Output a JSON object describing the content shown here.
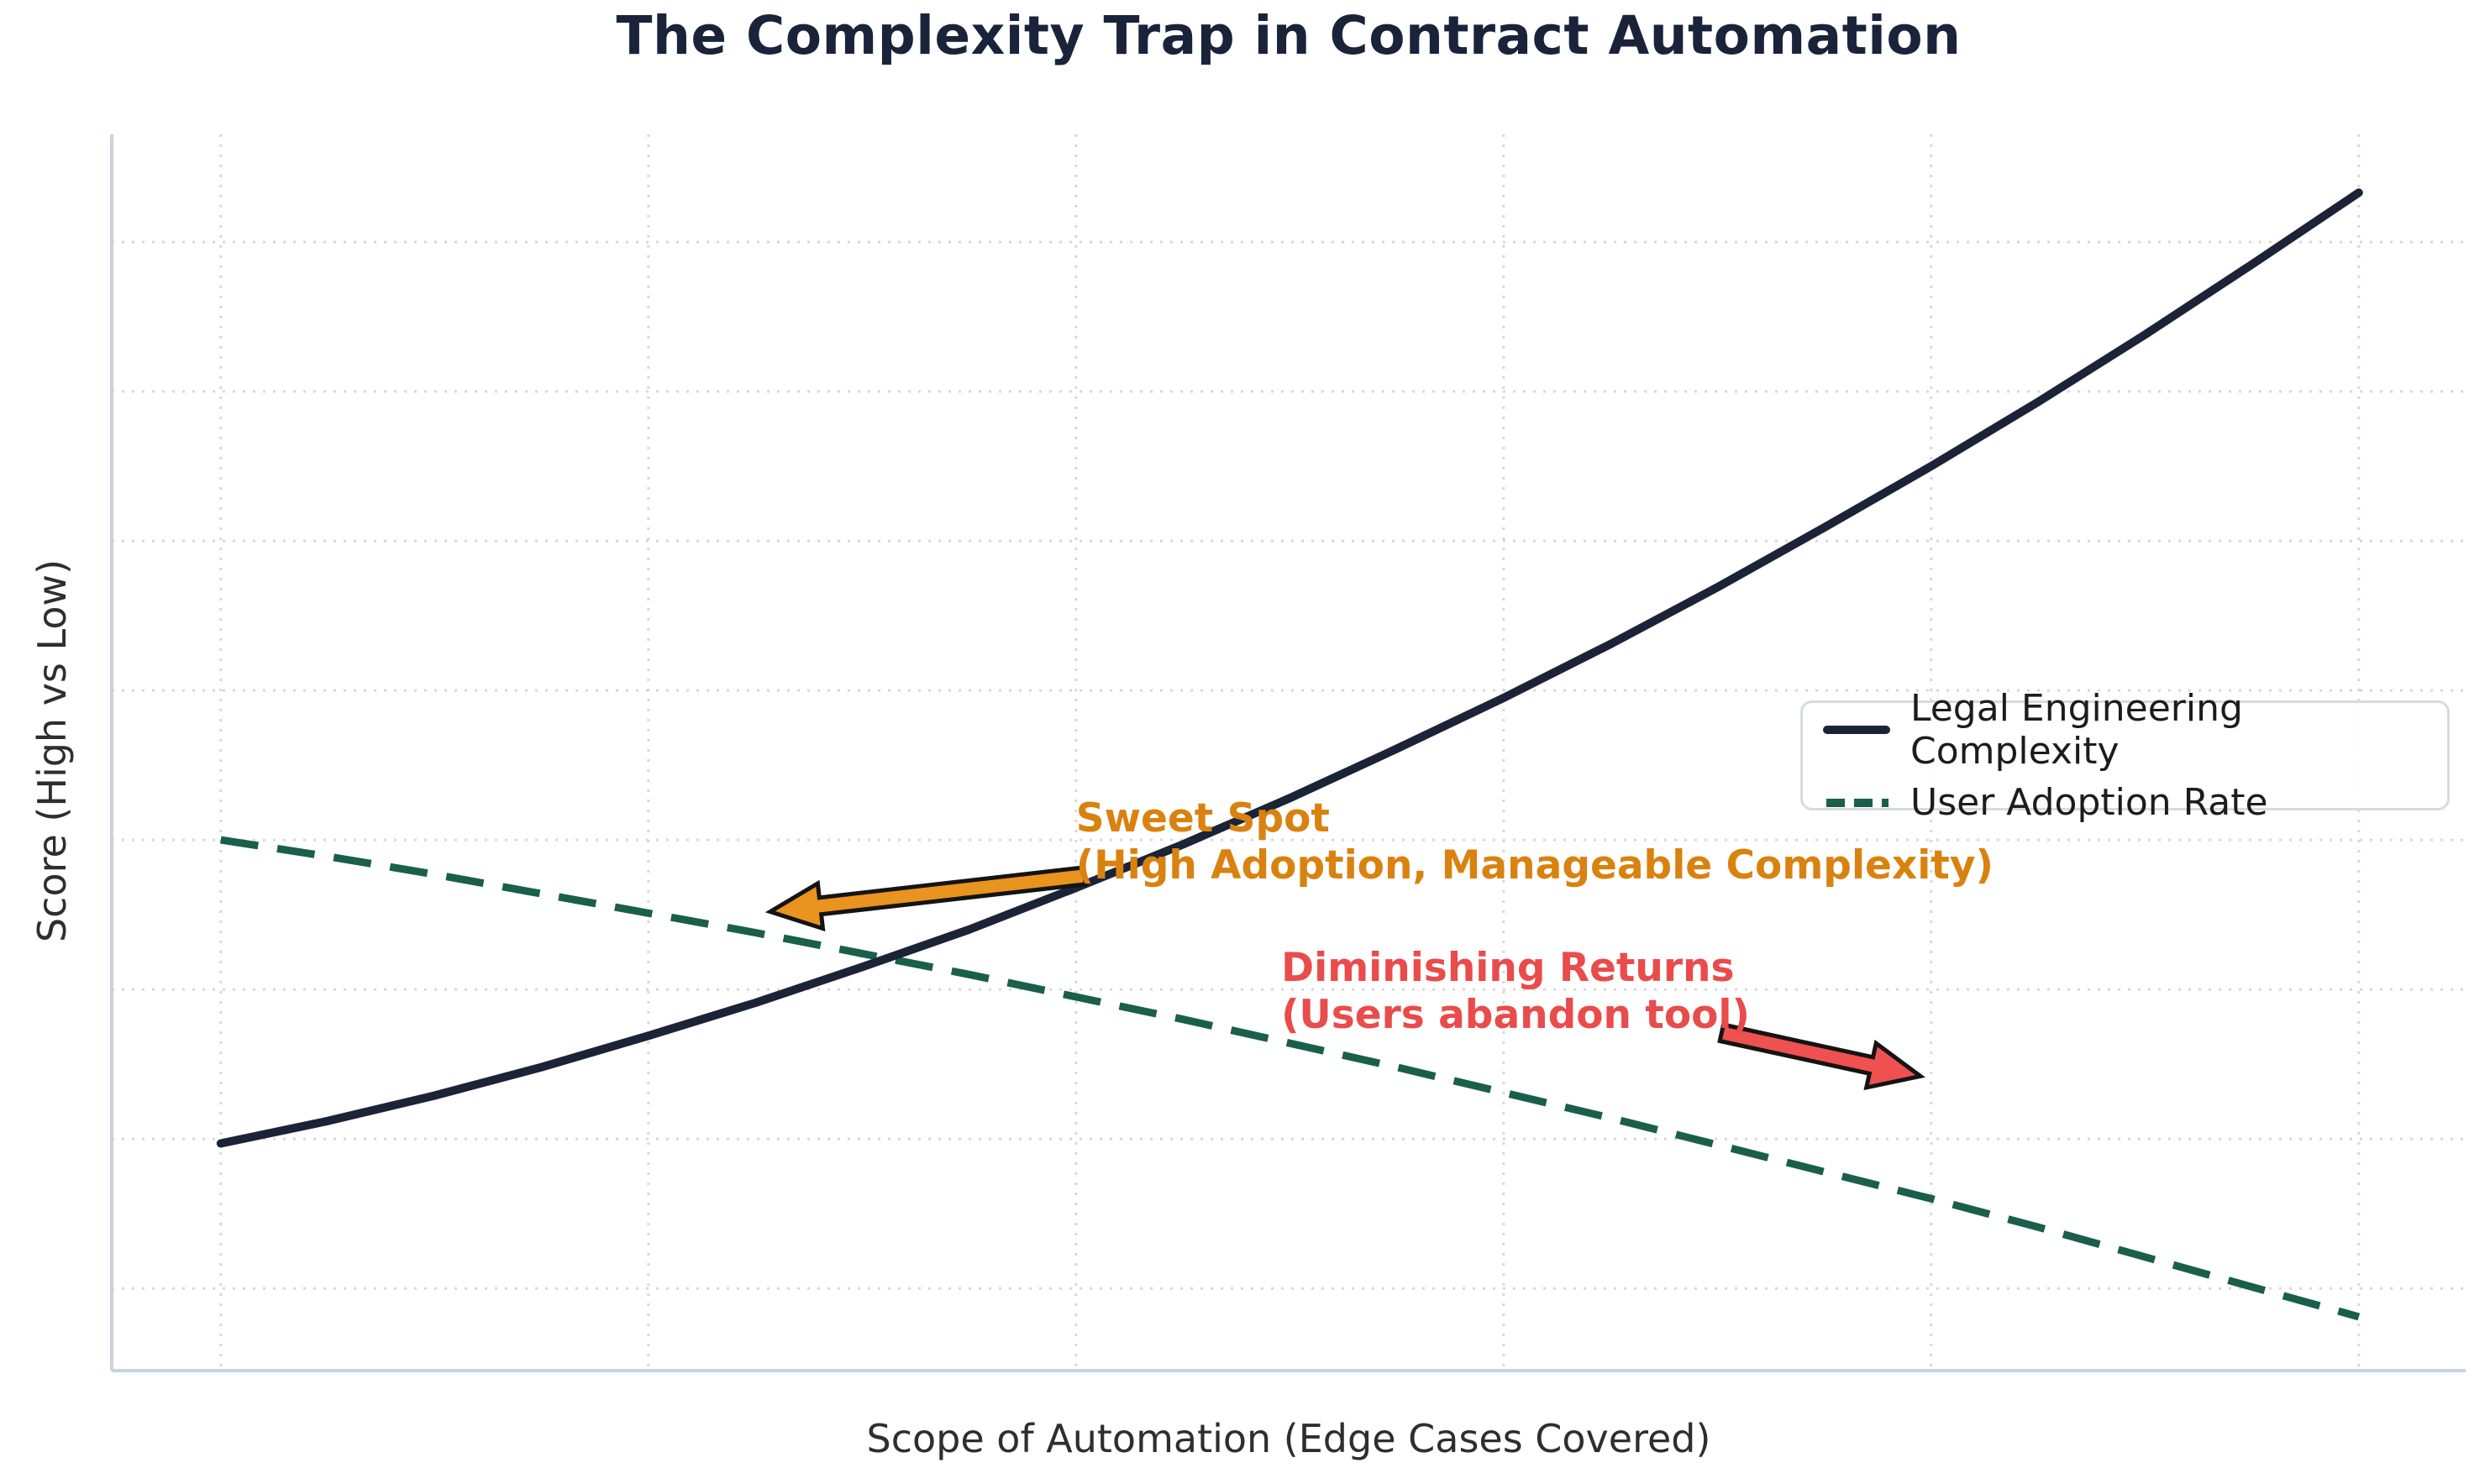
{
  "chart_data": {
    "type": "line",
    "title": "The Complexity Trap in Contract Automation",
    "xlabel": "Scope of Automation (Edge Cases Covered)",
    "ylabel": "Score (High vs Low)",
    "x": [
      0,
      0.5,
      1,
      1.5,
      2,
      2.5,
      3,
      3.5,
      4,
      4.5,
      5,
      5.5,
      6,
      6.5,
      7,
      7.5,
      8,
      8.5,
      9,
      9.5,
      10
    ],
    "series": [
      {
        "id": "complexity",
        "name": "Legal Engineering Complexity",
        "color": "#1B2337",
        "line_style": "solid",
        "values": [
          0.97,
          1.12,
          1.29,
          1.48,
          1.69,
          1.91,
          2.15,
          2.4,
          2.68,
          2.97,
          3.28,
          3.61,
          3.95,
          4.31,
          4.69,
          5.09,
          5.5,
          5.93,
          6.38,
          6.85,
          7.33
        ]
      },
      {
        "id": "adoption",
        "name": "User Adoption Rate",
        "color": "#1A5F49",
        "line_style": "dashed",
        "values": [
          3.0,
          2.89,
          2.77,
          2.64,
          2.51,
          2.38,
          2.24,
          2.1,
          1.95,
          1.8,
          1.64,
          1.48,
          1.31,
          1.14,
          0.96,
          0.78,
          0.6,
          0.41,
          0.21,
          0.01,
          -0.19
        ]
      }
    ],
    "xlim": [
      -0.51,
      10.5
    ],
    "ylim": [
      -0.55,
      7.72
    ],
    "xticks": [
      0,
      2,
      4,
      6,
      8,
      10
    ],
    "yticks": [
      0,
      1,
      2,
      3,
      4,
      5,
      6,
      7
    ],
    "tick_labels_shown": false,
    "grid": "dotted",
    "legend_position": "center-right",
    "annotations": {
      "sweet_spot": {
        "line1": "Sweet Spot",
        "line2": "(High Adoption, Manageable Complexity)",
        "color": "#D9820F",
        "arrow_color": "#E8941E",
        "text_xy": [
          4.0,
          3.3
        ],
        "arrow_tail_xy": [
          4.04,
          2.76
        ],
        "arrow_tip_xy": [
          2.57,
          2.52
        ]
      },
      "diminishing_returns": {
        "line1": "Diminishing Returns",
        "line2": "(Users abandon tool)",
        "color": "#EA4B4B",
        "arrow_color": "#EF5050",
        "text_xy": [
          4.96,
          2.3
        ],
        "arrow_tail_xy": [
          7.02,
          1.71
        ],
        "arrow_tip_xy": [
          7.95,
          1.42
        ]
      }
    }
  }
}
